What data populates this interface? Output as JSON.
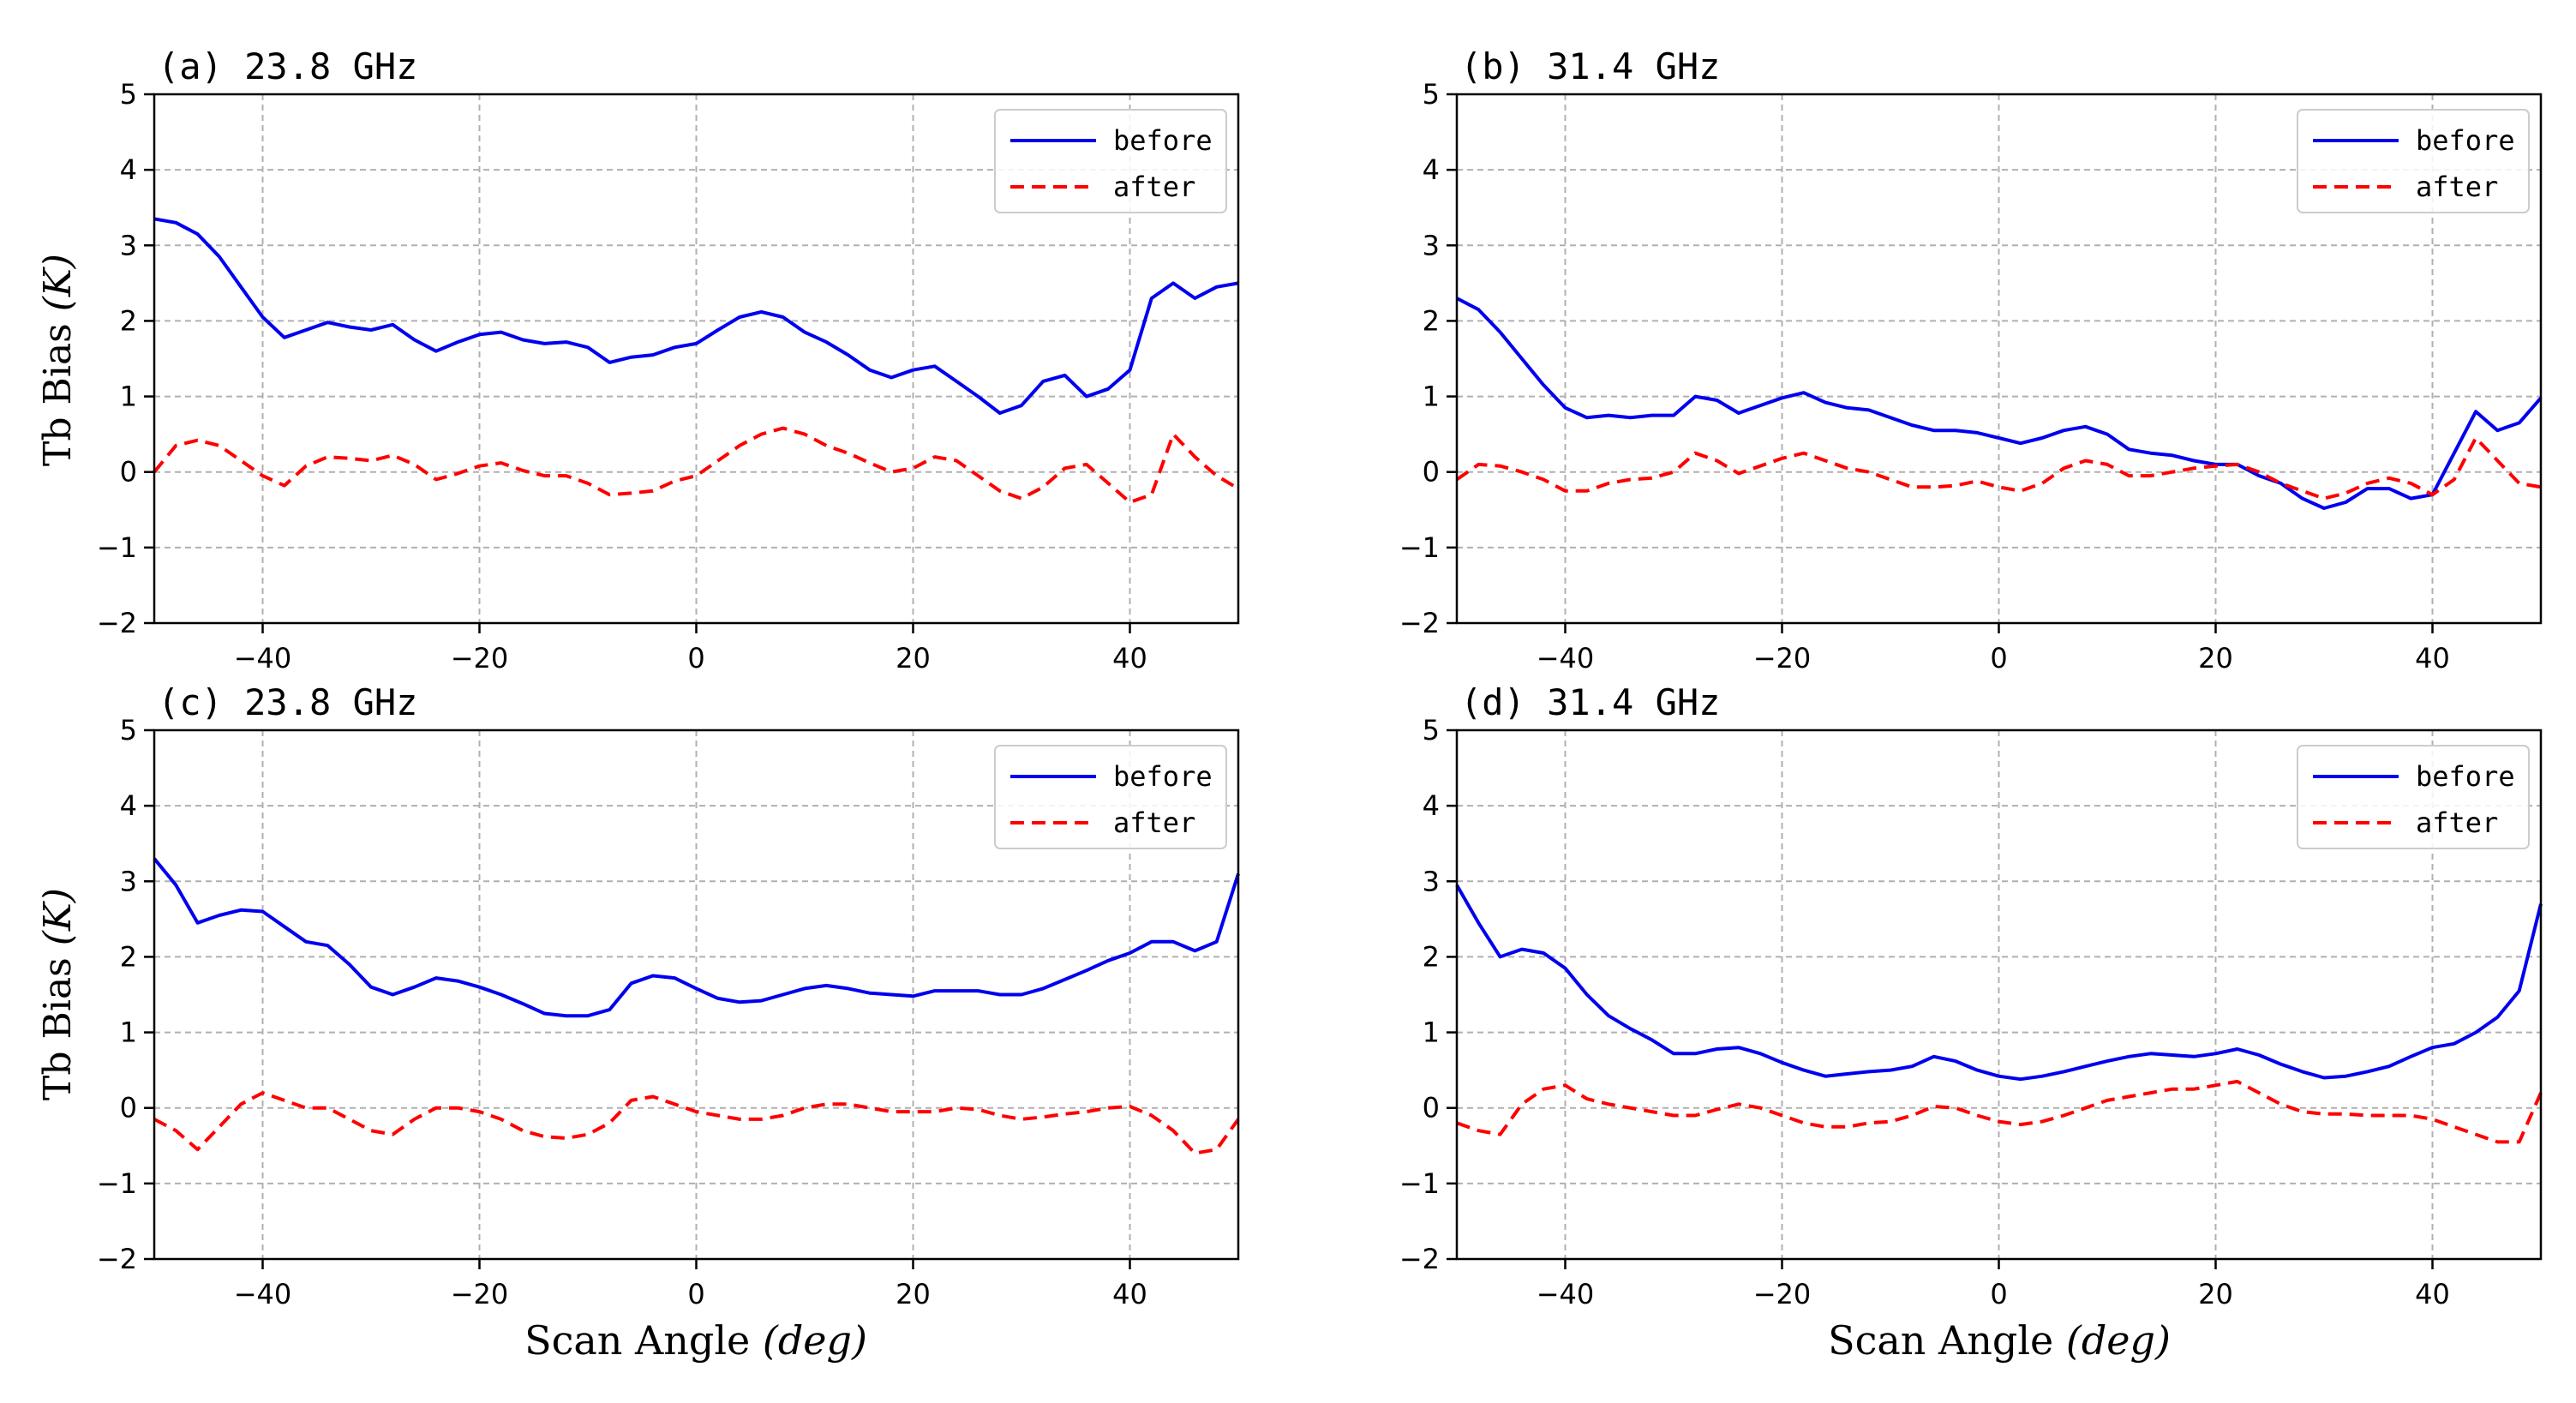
{
  "figure": {
    "ylabel_main": "Tb Bias ",
    "ylabel_unit": "(K)",
    "xlabel_main": "Scan Angle ",
    "xlabel_unit": "(deg)"
  },
  "colors": {
    "before": "#0000ee",
    "after": "#ff0000",
    "grid": "#b0b0b0"
  },
  "chart_data": [
    {
      "type": "line",
      "title": "(a) 23.8 GHz",
      "xlim": [
        -50,
        50
      ],
      "ylim": [
        -2,
        5
      ],
      "xticks": [
        -40,
        -20,
        0,
        20,
        40
      ],
      "yticks": [
        -2,
        -1,
        0,
        1,
        2,
        3,
        4,
        5
      ],
      "xtick_labels": [
        "−40",
        "−20",
        "0",
        "20",
        "40"
      ],
      "ytick_labels": [
        "−2",
        "−1",
        "0",
        "1",
        "2",
        "3",
        "4",
        "5"
      ],
      "grid": true,
      "legend_position": "top-right",
      "series": [
        {
          "name": "before",
          "x": [
            -50,
            -48,
            -46,
            -44,
            -42,
            -40,
            -38,
            -36,
            -34,
            -32,
            -30,
            -28,
            -26,
            -24,
            -22,
            -20,
            -18,
            -16,
            -14,
            -12,
            -10,
            -8,
            -6,
            -4,
            -2,
            0,
            2,
            4,
            6,
            8,
            10,
            12,
            14,
            16,
            18,
            20,
            22,
            24,
            26,
            28,
            30,
            32,
            34,
            36,
            38,
            40,
            42,
            44,
            46,
            48,
            50
          ],
          "y": [
            3.35,
            3.3,
            3.15,
            2.85,
            2.45,
            2.05,
            1.78,
            1.88,
            1.98,
            1.92,
            1.88,
            1.95,
            1.75,
            1.6,
            1.72,
            1.82,
            1.85,
            1.75,
            1.7,
            1.72,
            1.65,
            1.45,
            1.52,
            1.55,
            1.65,
            1.7,
            1.88,
            2.05,
            2.12,
            2.05,
            1.85,
            1.72,
            1.55,
            1.35,
            1.25,
            1.35,
            1.4,
            1.2,
            1.0,
            0.78,
            0.88,
            1.2,
            1.28,
            1.0,
            1.1,
            1.35,
            2.3,
            2.5,
            2.3,
            2.45,
            2.5
          ]
        },
        {
          "name": "after",
          "x": [
            -50,
            -48,
            -46,
            -44,
            -42,
            -40,
            -38,
            -36,
            -34,
            -32,
            -30,
            -28,
            -26,
            -24,
            -22,
            -20,
            -18,
            -16,
            -14,
            -12,
            -10,
            -8,
            -6,
            -4,
            -2,
            0,
            2,
            4,
            6,
            8,
            10,
            12,
            14,
            16,
            18,
            20,
            22,
            24,
            26,
            28,
            30,
            32,
            34,
            36,
            38,
            40,
            42,
            44,
            46,
            48,
            50
          ],
          "y": [
            0.0,
            0.35,
            0.42,
            0.35,
            0.15,
            -0.05,
            -0.18,
            0.08,
            0.2,
            0.18,
            0.15,
            0.22,
            0.1,
            -0.1,
            -0.02,
            0.08,
            0.12,
            0.02,
            -0.05,
            -0.05,
            -0.15,
            -0.3,
            -0.28,
            -0.25,
            -0.12,
            -0.05,
            0.15,
            0.35,
            0.5,
            0.58,
            0.5,
            0.35,
            0.25,
            0.12,
            0.0,
            0.05,
            0.2,
            0.15,
            -0.05,
            -0.25,
            -0.35,
            -0.2,
            0.05,
            0.1,
            -0.15,
            -0.4,
            -0.3,
            0.5,
            0.2,
            -0.05,
            -0.22
          ]
        }
      ]
    },
    {
      "type": "line",
      "title": "(b) 31.4 GHz",
      "xlim": [
        -50,
        50
      ],
      "ylim": [
        -2,
        5
      ],
      "xticks": [
        -40,
        -20,
        0,
        20,
        40
      ],
      "yticks": [
        -2,
        -1,
        0,
        1,
        2,
        3,
        4,
        5
      ],
      "xtick_labels": [
        "−40",
        "−20",
        "0",
        "20",
        "40"
      ],
      "ytick_labels": [
        "−2",
        "−1",
        "0",
        "1",
        "2",
        "3",
        "4",
        "5"
      ],
      "grid": true,
      "legend_position": "top-right",
      "series": [
        {
          "name": "before",
          "x": [
            -50,
            -48,
            -46,
            -44,
            -42,
            -40,
            -38,
            -36,
            -34,
            -32,
            -30,
            -28,
            -26,
            -24,
            -22,
            -20,
            -18,
            -16,
            -14,
            -12,
            -10,
            -8,
            -6,
            -4,
            -2,
            0,
            2,
            4,
            6,
            8,
            10,
            12,
            14,
            16,
            18,
            20,
            22,
            24,
            26,
            28,
            30,
            32,
            34,
            36,
            38,
            40,
            42,
            44,
            46,
            48,
            50
          ],
          "y": [
            2.3,
            2.15,
            1.85,
            1.5,
            1.15,
            0.85,
            0.72,
            0.75,
            0.72,
            0.75,
            0.75,
            1.0,
            0.95,
            0.78,
            0.88,
            0.98,
            1.05,
            0.92,
            0.85,
            0.82,
            0.72,
            0.62,
            0.55,
            0.55,
            0.52,
            0.45,
            0.38,
            0.45,
            0.55,
            0.6,
            0.5,
            0.3,
            0.25,
            0.22,
            0.15,
            0.1,
            0.1,
            -0.05,
            -0.15,
            -0.35,
            -0.48,
            -0.4,
            -0.22,
            -0.22,
            -0.35,
            -0.3,
            0.25,
            0.8,
            0.55,
            0.65,
            0.98
          ]
        },
        {
          "name": "after",
          "x": [
            -50,
            -48,
            -46,
            -44,
            -42,
            -40,
            -38,
            -36,
            -34,
            -32,
            -30,
            -28,
            -26,
            -24,
            -22,
            -20,
            -18,
            -16,
            -14,
            -12,
            -10,
            -8,
            -6,
            -4,
            -2,
            0,
            2,
            4,
            6,
            8,
            10,
            12,
            14,
            16,
            18,
            20,
            22,
            24,
            26,
            28,
            30,
            32,
            34,
            36,
            38,
            40,
            42,
            44,
            46,
            48,
            50
          ],
          "y": [
            -0.1,
            0.1,
            0.08,
            0.0,
            -0.1,
            -0.25,
            -0.25,
            -0.15,
            -0.1,
            -0.08,
            0.0,
            0.25,
            0.15,
            -0.02,
            0.08,
            0.18,
            0.25,
            0.15,
            0.05,
            0.0,
            -0.1,
            -0.2,
            -0.2,
            -0.18,
            -0.12,
            -0.2,
            -0.25,
            -0.15,
            0.05,
            0.15,
            0.1,
            -0.05,
            -0.05,
            0.0,
            0.05,
            0.08,
            0.1,
            0.0,
            -0.15,
            -0.25,
            -0.35,
            -0.28,
            -0.15,
            -0.08,
            -0.15,
            -0.3,
            -0.1,
            0.45,
            0.15,
            -0.15,
            -0.2
          ]
        }
      ]
    },
    {
      "type": "line",
      "title": "(c) 23.8 GHz",
      "xlim": [
        -50,
        50
      ],
      "ylim": [
        -2,
        5
      ],
      "xticks": [
        -40,
        -20,
        0,
        20,
        40
      ],
      "yticks": [
        -2,
        -1,
        0,
        1,
        2,
        3,
        4,
        5
      ],
      "xtick_labels": [
        "−40",
        "−20",
        "0",
        "20",
        "40"
      ],
      "ytick_labels": [
        "−2",
        "−1",
        "0",
        "1",
        "2",
        "3",
        "4",
        "5"
      ],
      "grid": true,
      "legend_position": "top-right",
      "series": [
        {
          "name": "before",
          "x": [
            -50,
            -48,
            -46,
            -44,
            -42,
            -40,
            -38,
            -36,
            -34,
            -32,
            -30,
            -28,
            -26,
            -24,
            -22,
            -20,
            -18,
            -16,
            -14,
            -12,
            -10,
            -8,
            -6,
            -4,
            -2,
            0,
            2,
            4,
            6,
            8,
            10,
            12,
            14,
            16,
            18,
            20,
            22,
            24,
            26,
            28,
            30,
            32,
            34,
            36,
            38,
            40,
            42,
            44,
            46,
            48,
            50
          ],
          "y": [
            3.3,
            2.95,
            2.45,
            2.55,
            2.62,
            2.6,
            2.4,
            2.2,
            2.15,
            1.9,
            1.6,
            1.5,
            1.6,
            1.72,
            1.68,
            1.6,
            1.5,
            1.38,
            1.25,
            1.22,
            1.22,
            1.3,
            1.65,
            1.75,
            1.72,
            1.58,
            1.45,
            1.4,
            1.42,
            1.5,
            1.58,
            1.62,
            1.58,
            1.52,
            1.5,
            1.48,
            1.55,
            1.55,
            1.55,
            1.5,
            1.5,
            1.58,
            1.7,
            1.82,
            1.95,
            2.05,
            2.2,
            2.2,
            2.08,
            2.2,
            3.1
          ]
        },
        {
          "name": "after",
          "x": [
            -50,
            -48,
            -46,
            -44,
            -42,
            -40,
            -38,
            -36,
            -34,
            -32,
            -30,
            -28,
            -26,
            -24,
            -22,
            -20,
            -18,
            -16,
            -14,
            -12,
            -10,
            -8,
            -6,
            -4,
            -2,
            0,
            2,
            4,
            6,
            8,
            10,
            12,
            14,
            16,
            18,
            20,
            22,
            24,
            26,
            28,
            30,
            32,
            34,
            36,
            38,
            40,
            42,
            44,
            46,
            48,
            50
          ],
          "y": [
            -0.15,
            -0.3,
            -0.55,
            -0.25,
            0.05,
            0.2,
            0.1,
            0.0,
            0.0,
            -0.15,
            -0.3,
            -0.35,
            -0.15,
            0.0,
            0.0,
            -0.05,
            -0.15,
            -0.3,
            -0.38,
            -0.4,
            -0.35,
            -0.2,
            0.1,
            0.15,
            0.05,
            -0.05,
            -0.1,
            -0.15,
            -0.15,
            -0.1,
            0.0,
            0.05,
            0.05,
            0.0,
            -0.05,
            -0.05,
            -0.05,
            0.0,
            -0.02,
            -0.1,
            -0.15,
            -0.12,
            -0.08,
            -0.05,
            0.0,
            0.02,
            -0.1,
            -0.3,
            -0.6,
            -0.55,
            -0.15
          ]
        }
      ]
    },
    {
      "type": "line",
      "title": "(d) 31.4 GHz",
      "xlim": [
        -50,
        50
      ],
      "ylim": [
        -2,
        5
      ],
      "xticks": [
        -40,
        -20,
        0,
        20,
        40
      ],
      "yticks": [
        -2,
        -1,
        0,
        1,
        2,
        3,
        4,
        5
      ],
      "xtick_labels": [
        "−40",
        "−20",
        "0",
        "20",
        "40"
      ],
      "ytick_labels": [
        "−2",
        "−1",
        "0",
        "1",
        "2",
        "3",
        "4",
        "5"
      ],
      "grid": true,
      "legend_position": "top-right",
      "series": [
        {
          "name": "before",
          "x": [
            -50,
            -48,
            -46,
            -44,
            -42,
            -40,
            -38,
            -36,
            -34,
            -32,
            -30,
            -28,
            -26,
            -24,
            -22,
            -20,
            -18,
            -16,
            -14,
            -12,
            -10,
            -8,
            -6,
            -4,
            -2,
            0,
            2,
            4,
            6,
            8,
            10,
            12,
            14,
            16,
            18,
            20,
            22,
            24,
            26,
            28,
            30,
            32,
            34,
            36,
            38,
            40,
            42,
            44,
            46,
            48,
            50
          ],
          "y": [
            2.95,
            2.45,
            2.0,
            2.1,
            2.05,
            1.85,
            1.5,
            1.22,
            1.05,
            0.9,
            0.72,
            0.72,
            0.78,
            0.8,
            0.72,
            0.6,
            0.5,
            0.42,
            0.45,
            0.48,
            0.5,
            0.55,
            0.68,
            0.62,
            0.5,
            0.42,
            0.38,
            0.42,
            0.48,
            0.55,
            0.62,
            0.68,
            0.72,
            0.7,
            0.68,
            0.72,
            0.78,
            0.7,
            0.58,
            0.48,
            0.4,
            0.42,
            0.48,
            0.55,
            0.68,
            0.8,
            0.85,
            1.0,
            1.2,
            1.55,
            2.7
          ]
        },
        {
          "name": "after",
          "x": [
            -50,
            -48,
            -46,
            -44,
            -42,
            -40,
            -38,
            -36,
            -34,
            -32,
            -30,
            -28,
            -26,
            -24,
            -22,
            -20,
            -18,
            -16,
            -14,
            -12,
            -10,
            -8,
            -6,
            -4,
            -2,
            0,
            2,
            4,
            6,
            8,
            10,
            12,
            14,
            16,
            18,
            20,
            22,
            24,
            26,
            28,
            30,
            32,
            34,
            36,
            38,
            40,
            42,
            44,
            46,
            48,
            50
          ],
          "y": [
            -0.2,
            -0.3,
            -0.35,
            0.05,
            0.25,
            0.3,
            0.12,
            0.05,
            0.0,
            -0.05,
            -0.1,
            -0.1,
            -0.02,
            0.05,
            0.0,
            -0.1,
            -0.2,
            -0.25,
            -0.25,
            -0.2,
            -0.18,
            -0.1,
            0.02,
            0.0,
            -0.1,
            -0.18,
            -0.22,
            -0.18,
            -0.1,
            0.0,
            0.1,
            0.15,
            0.2,
            0.25,
            0.25,
            0.3,
            0.35,
            0.2,
            0.05,
            -0.05,
            -0.08,
            -0.08,
            -0.1,
            -0.1,
            -0.1,
            -0.15,
            -0.25,
            -0.35,
            -0.45,
            -0.45,
            0.2
          ]
        }
      ]
    }
  ]
}
